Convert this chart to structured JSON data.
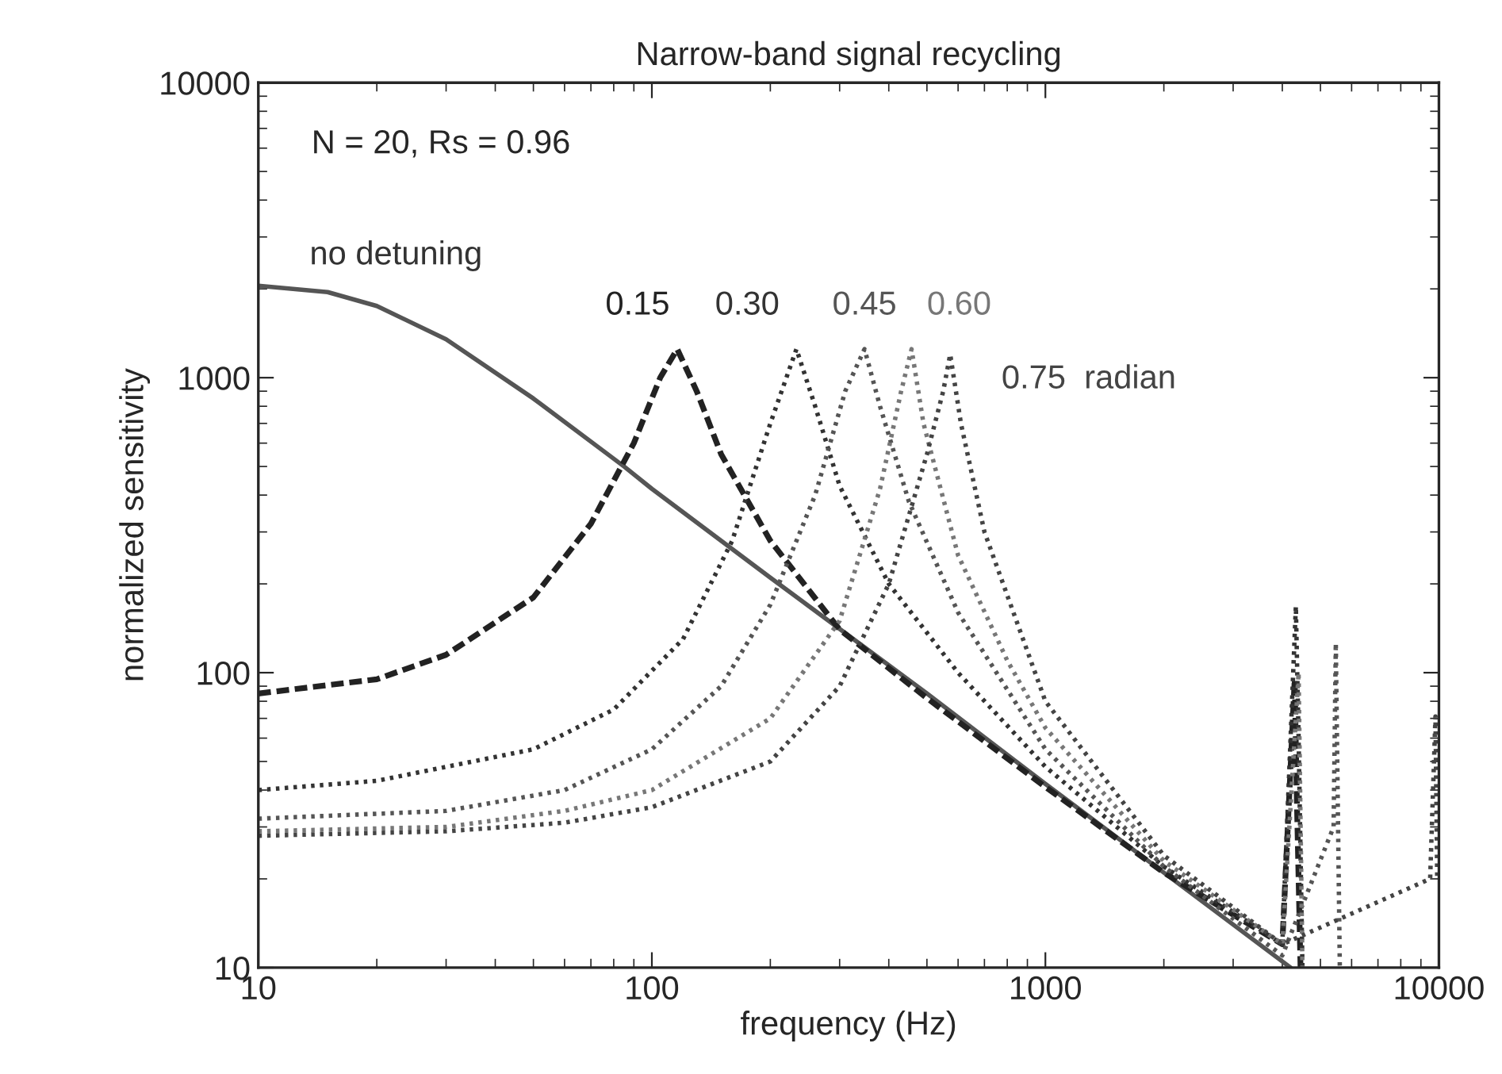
{
  "chart_data": {
    "type": "line",
    "title": "Narrow-band signal recycling",
    "xlabel": "frequency (Hz)",
    "ylabel": "normalized sensitivity",
    "log": "xy",
    "xlim": [
      10,
      10000
    ],
    "ylim": [
      10,
      10000
    ],
    "xticks": [
      10,
      100,
      1000,
      10000
    ],
    "yticks": [
      10,
      100,
      1000,
      10000
    ],
    "grid": false,
    "legend": false,
    "annotations": [
      "N = 20, Rs = 0.96"
    ],
    "series": [
      {
        "name": "no detuning",
        "color": "#555555",
        "line_style": "solid",
        "x": [
          10,
          15,
          20,
          30,
          50,
          85,
          100,
          200,
          500,
          1000,
          2000,
          4200
        ],
        "values": [
          2050,
          1950,
          1750,
          1350,
          850,
          500,
          420,
          210,
          85,
          42,
          21,
          10
        ]
      },
      {
        "name": "0.15",
        "color": "#222222",
        "line_style": "dashed",
        "x": [
          10,
          20,
          30,
          50,
          70,
          90,
          105,
          116,
          130,
          150,
          200,
          300,
          500,
          1000,
          2000,
          4000,
          4300,
          4350,
          4450
        ],
        "values": [
          85,
          95,
          115,
          180,
          320,
          600,
          1000,
          1250,
          900,
          550,
          280,
          140,
          82,
          41,
          21,
          12,
          95,
          40,
          10
        ]
      },
      {
        "name": "0.30",
        "color": "#333333",
        "line_style": "dotted",
        "x": [
          10,
          20,
          50,
          80,
          120,
          160,
          200,
          233,
          260,
          300,
          400,
          600,
          1000,
          2000,
          4000,
          4330,
          4400,
          4500
        ],
        "values": [
          40,
          43,
          55,
          75,
          130,
          280,
          700,
          1250,
          800,
          430,
          200,
          100,
          48,
          22,
          12,
          168,
          60,
          10
        ]
      },
      {
        "name": "0.45",
        "color": "#555555",
        "line_style": "dotted",
        "x": [
          10,
          30,
          60,
          100,
          150,
          200,
          260,
          310,
          347,
          380,
          450,
          600,
          1000,
          2000,
          4000,
          5400,
          5470,
          5600
        ],
        "values": [
          32,
          34,
          40,
          55,
          90,
          170,
          400,
          900,
          1250,
          800,
          380,
          160,
          55,
          22,
          11,
          30,
          126,
          10
        ]
      },
      {
        "name": "0.60",
        "color": "#777777",
        "line_style": "dotted",
        "x": [
          10,
          30,
          60,
          100,
          200,
          300,
          380,
          430,
          457,
          490,
          600,
          800,
          1000,
          2000,
          4000,
          4400,
          4500
        ],
        "values": [
          29,
          30,
          34,
          40,
          70,
          150,
          420,
          900,
          1250,
          700,
          250,
          110,
          65,
          23,
          12,
          100,
          10
        ]
      },
      {
        "name": "0.75  radian",
        "color": "#444444",
        "line_style": "dotted",
        "x": [
          10,
          30,
          60,
          100,
          200,
          300,
          400,
          500,
          550,
          573,
          610,
          700,
          1000,
          2000,
          4000,
          9500,
          9800,
          9900
        ],
        "values": [
          28,
          29,
          31,
          35,
          50,
          90,
          200,
          550,
          900,
          1200,
          700,
          300,
          80,
          24,
          12,
          20,
          71,
          20
        ]
      }
    ]
  }
}
